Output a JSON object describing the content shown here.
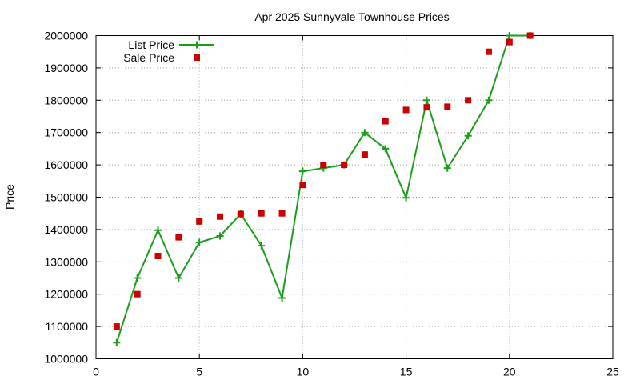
{
  "chart_data": {
    "type": "line",
    "title": "Apr 2025 Sunnyvale Townhouse Prices",
    "xlabel": "",
    "ylabel": "Price",
    "xlim": [
      0,
      25
    ],
    "ylim": [
      1000000,
      2000000
    ],
    "xticks": [
      0,
      5,
      10,
      15,
      20,
      25
    ],
    "yticks": [
      1000000,
      1100000,
      1200000,
      1300000,
      1400000,
      1500000,
      1600000,
      1700000,
      1800000,
      1900000,
      2000000
    ],
    "grid": true,
    "legend_position": "top-left",
    "series": [
      {
        "name": "List Price",
        "style": "linespoints",
        "marker": "plus",
        "color": "#1a9e1a",
        "x": [
          1,
          2,
          3,
          4,
          5,
          6,
          7,
          8,
          9,
          10,
          11,
          12,
          13,
          14,
          15,
          16,
          17,
          18,
          19,
          20,
          21
        ],
        "y": [
          1050000,
          1250000,
          1398000,
          1250000,
          1360000,
          1380000,
          1448000,
          1350000,
          1188000,
          1580000,
          1590000,
          1600000,
          1700000,
          1650000,
          1498000,
          1800000,
          1590000,
          1690000,
          1800000,
          2000000,
          2000000
        ]
      },
      {
        "name": "Sale Price",
        "style": "points",
        "marker": "square",
        "color": "#cc0000",
        "x": [
          1,
          2,
          3,
          4,
          5,
          6,
          7,
          8,
          9,
          10,
          11,
          12,
          13,
          14,
          15,
          16,
          17,
          18,
          19,
          20,
          21
        ],
        "y": [
          1100000,
          1200000,
          1318000,
          1376000,
          1425000,
          1440000,
          1448000,
          1450000,
          1450000,
          1538000,
          1600000,
          1600000,
          1632000,
          1735000,
          1770000,
          1778000,
          1780000,
          1800000,
          1950000,
          1980000,
          2000000
        ]
      }
    ]
  }
}
